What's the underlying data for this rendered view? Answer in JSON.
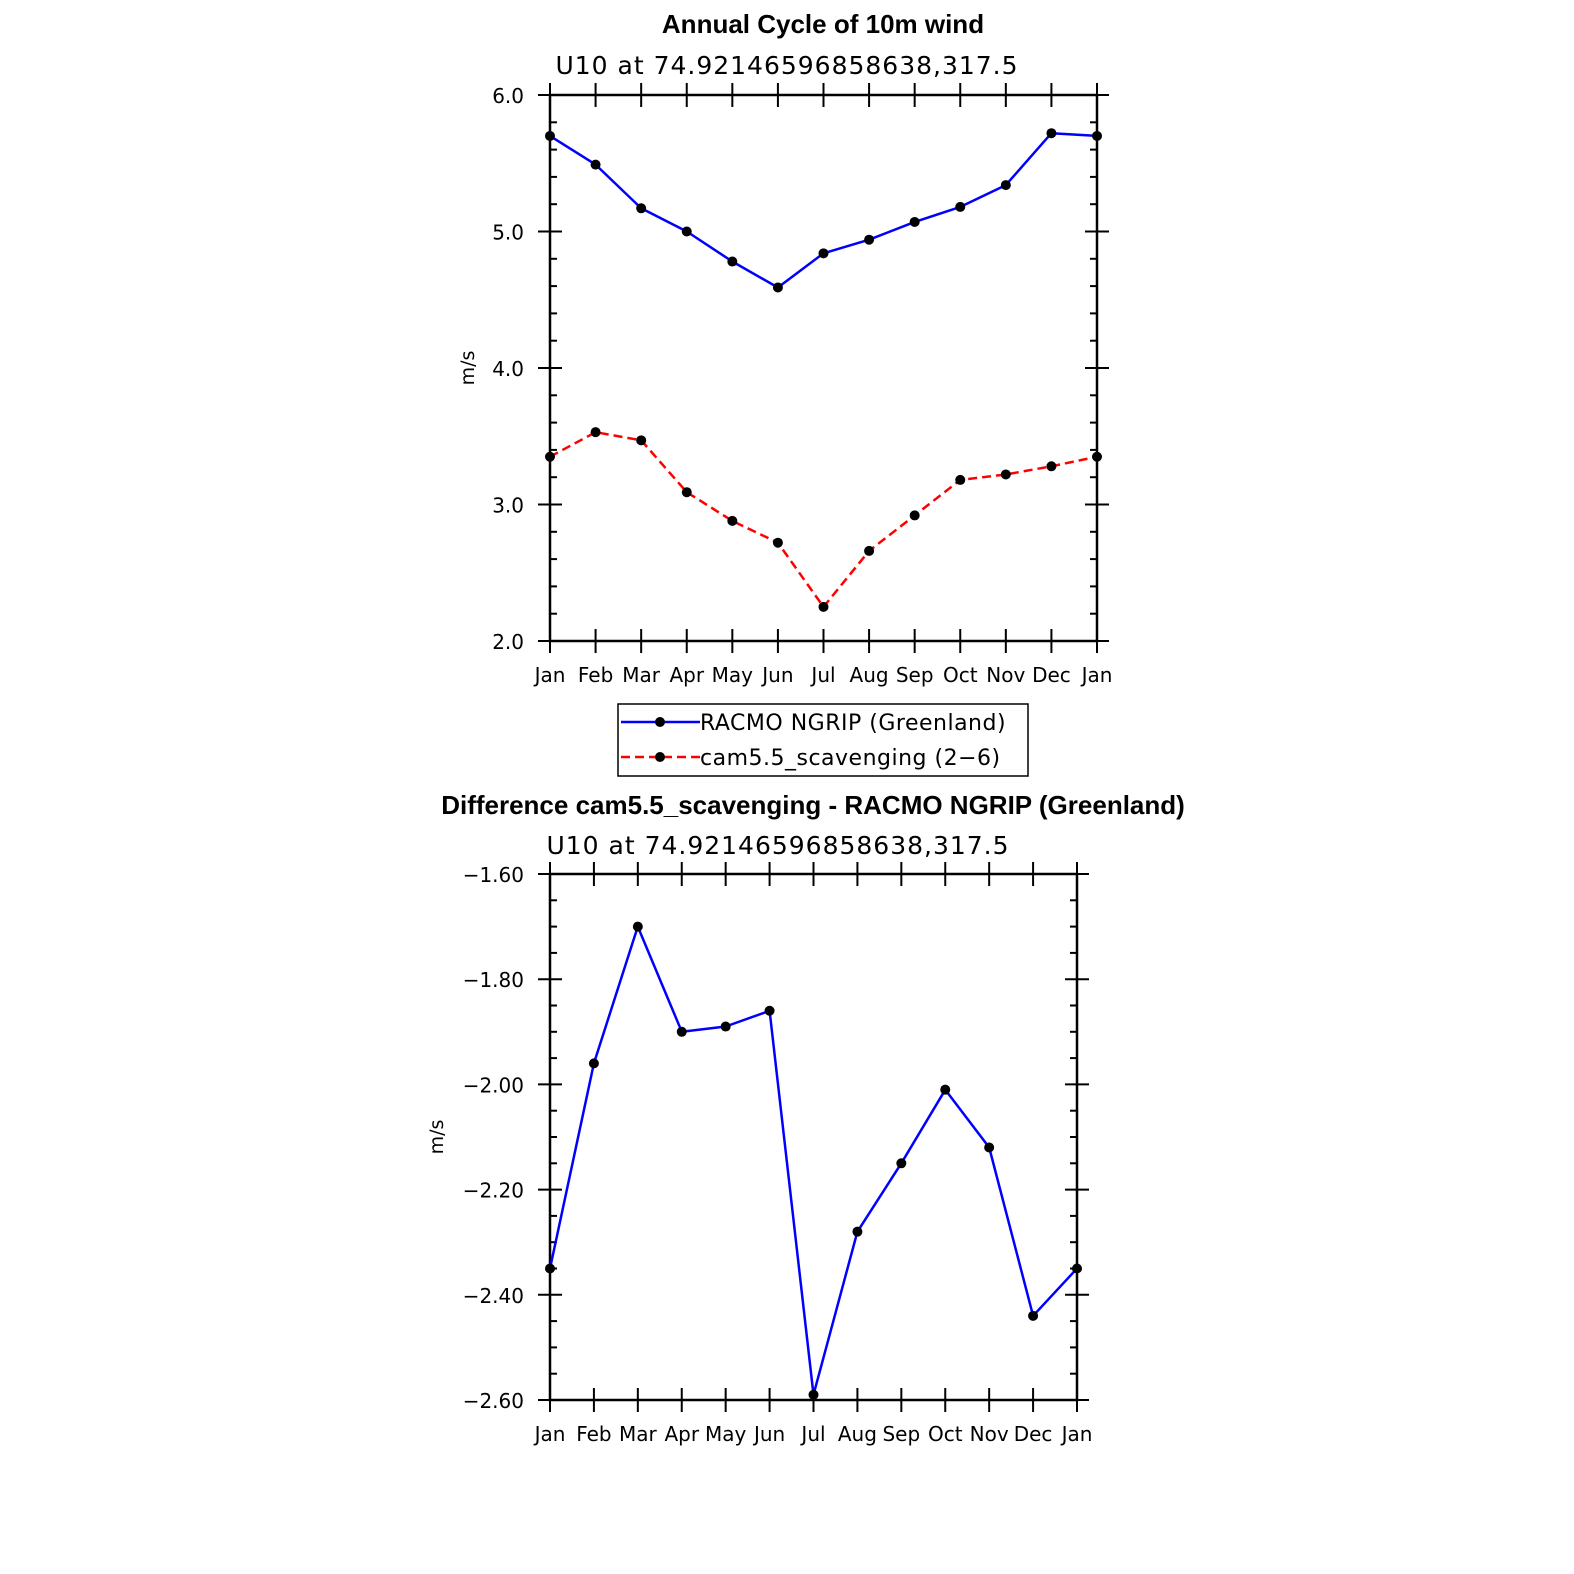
{
  "chart_data": [
    {
      "type": "line",
      "title": "Annual Cycle of 10m wind",
      "subtitle": "U10  at  74.92146596858638,317.5",
      "xlabel": "",
      "ylabel": "m/s",
      "categories": [
        "Jan",
        "Feb",
        "Mar",
        "Apr",
        "May",
        "Jun",
        "Jul",
        "Aug",
        "Sep",
        "Oct",
        "Nov",
        "Dec",
        "Jan"
      ],
      "ylim": [
        2.0,
        6.0
      ],
      "yticks": [
        "2.0",
        "3.0",
        "4.0",
        "5.0",
        "6.0"
      ],
      "legend_position": "bottom",
      "series": [
        {
          "name": "RACMO NGRIP (Greenland)",
          "color": "#0000ff",
          "dash": "solid",
          "values": [
            5.7,
            5.49,
            5.17,
            5.0,
            4.78,
            4.59,
            4.84,
            4.94,
            5.07,
            5.18,
            5.34,
            5.72,
            5.7
          ]
        },
        {
          "name": "cam5.5_scavenging (2−6)",
          "color": "#ff0000",
          "dash": "dashed",
          "values": [
            3.35,
            3.53,
            3.47,
            3.09,
            2.88,
            2.72,
            2.25,
            2.66,
            2.92,
            3.18,
            3.22,
            3.28,
            3.35
          ]
        }
      ]
    },
    {
      "type": "line",
      "title": "Difference cam5.5_scavenging - RACMO NGRIP (Greenland)",
      "subtitle": "U10  at  74.92146596858638,317.5",
      "xlabel": "",
      "ylabel": "m/s",
      "categories": [
        "Jan",
        "Feb",
        "Mar",
        "Apr",
        "May",
        "Jun",
        "Jul",
        "Aug",
        "Sep",
        "Oct",
        "Nov",
        "Dec",
        "Jan"
      ],
      "ylim": [
        -2.6,
        -1.6
      ],
      "yticks": [
        "−2.60",
        "−2.40",
        "−2.20",
        "−2.00",
        "−1.80",
        "−1.60"
      ],
      "series": [
        {
          "color": "#0000ff",
          "dash": "solid",
          "values": [
            -2.35,
            -1.96,
            -1.7,
            -1.9,
            -1.89,
            -1.86,
            -2.59,
            -2.28,
            -2.15,
            -2.01,
            -2.12,
            -2.44,
            -2.35
          ]
        }
      ]
    }
  ]
}
